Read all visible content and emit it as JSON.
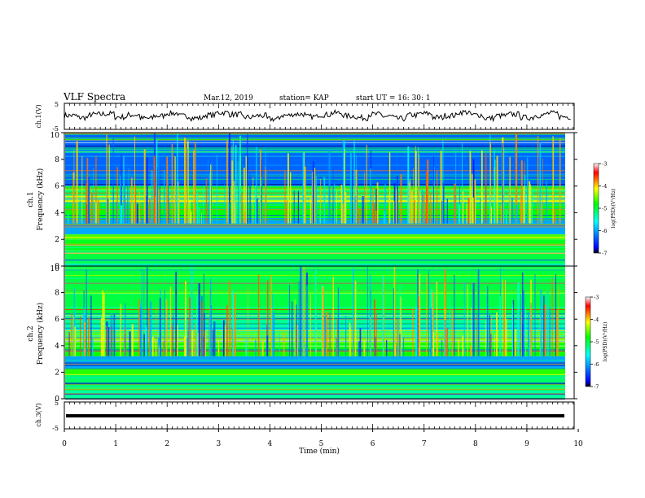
{
  "header": {
    "title": "VLF Spectra",
    "date": "Mar.12, 2019",
    "station": "station= KAP",
    "start": "start UT = 16: 30: 1"
  },
  "chart_data": [
    {
      "type": "line",
      "panel": "ch1-waveform",
      "ylabel": "ch.1(V)",
      "ylim": [
        -5,
        5
      ],
      "yticks": [
        "5",
        "-5"
      ],
      "xlim": [
        0,
        9.85
      ],
      "description_source": "noisy voltage trace around 0 V, amplitude roughly ±2 V",
      "y": [
        0.4,
        -0.6,
        0.9,
        1.2,
        -0.3,
        0.7,
        -1.0,
        0.2,
        1.5,
        0.1,
        -0.8,
        0.6,
        1.8,
        0.9,
        -0.4,
        0.3,
        -1.3,
        0.5,
        1.1,
        -0.2,
        0.8,
        1.6,
        0.2,
        -0.7,
        0.9,
        0.0,
        -1.1,
        0.6,
        1.3,
        -0.5,
        0.4,
        2.0,
        0.7,
        -0.9,
        0.3,
        1.0,
        -0.6,
        0.5,
        1.4,
        -0.2
      ]
    },
    {
      "type": "heatmap",
      "panel": "ch1-spectrogram",
      "ylabel": "ch.1\nFrequency (kHz)",
      "ylim": [
        0,
        10
      ],
      "yticks": [
        "0",
        "2",
        "4",
        "6",
        "8",
        "10"
      ],
      "xlim": [
        0,
        9.85
      ],
      "colorbar": {
        "label": "log(PSD)(V²/Hz)",
        "range": [
          -7,
          -3
        ],
        "ticks": [
          "-3",
          "-4",
          "-5",
          "-6",
          "-7"
        ],
        "colors": [
          "#000000",
          "#0000ff",
          "#00ffff",
          "#00ff00",
          "#ffff00",
          "#ff0000",
          "#ffffff"
        ]
      },
      "bands_khz": [
        {
          "from": 0,
          "to": 0.5,
          "level": -5.2
        },
        {
          "from": 0.5,
          "to": 1.2,
          "level": -5.0
        },
        {
          "from": 1.2,
          "to": 2.0,
          "level": -4.9
        },
        {
          "from": 2.0,
          "to": 2.4,
          "level": -4.6
        },
        {
          "from": 2.4,
          "to": 3.6,
          "level": -6.0
        },
        {
          "from": 3.6,
          "to": 4.8,
          "level": -4.8
        },
        {
          "from": 4.8,
          "to": 5.3,
          "level": -4.2
        },
        {
          "from": 5.3,
          "to": 6.0,
          "level": -5.0
        },
        {
          "from": 6.0,
          "to": 10.0,
          "level": -6.3
        }
      ]
    },
    {
      "type": "heatmap",
      "panel": "ch2-spectrogram",
      "ylabel": "ch.2\nFrequency (kHz)",
      "ylim": [
        0,
        10
      ],
      "yticks": [
        "0",
        "2",
        "4",
        "6",
        "8",
        "10"
      ],
      "xlim": [
        0,
        9.85
      ],
      "colorbar": {
        "label": "log(PSD)(V²/Hz)",
        "range": [
          -7,
          -3
        ],
        "ticks": [
          "-3",
          "-4",
          "-5",
          "-6",
          "-7"
        ],
        "colors": [
          "#000000",
          "#0000ff",
          "#00ffff",
          "#00ff00",
          "#ffff00",
          "#ff0000",
          "#ffffff"
        ]
      },
      "bands_khz": [
        {
          "from": 0,
          "to": 0.8,
          "level": -5.3
        },
        {
          "from": 0.8,
          "to": 1.8,
          "level": -5.1
        },
        {
          "from": 1.8,
          "to": 2.3,
          "level": -4.7
        },
        {
          "from": 2.3,
          "to": 3.2,
          "level": -6.0
        },
        {
          "from": 3.2,
          "to": 4.2,
          "level": -4.8
        },
        {
          "from": 4.2,
          "to": 5.0,
          "level": -4.5
        },
        {
          "from": 5.0,
          "to": 6.0,
          "level": -5.3
        },
        {
          "from": 6.0,
          "to": 10.0,
          "level": -5.0
        }
      ]
    },
    {
      "type": "line",
      "panel": "ch3-waveform",
      "ylabel": "ch.3(V)",
      "ylim": [
        -5,
        5
      ],
      "yticks": [
        "5",
        "-5"
      ],
      "xlim": [
        0,
        9.85
      ],
      "y_constant": 0
    }
  ],
  "xaxis": {
    "label": "Time (min)",
    "ticks": [
      "0",
      "1",
      "2",
      "3",
      "4",
      "5",
      "6",
      "7",
      "8",
      "9",
      "10"
    ]
  }
}
